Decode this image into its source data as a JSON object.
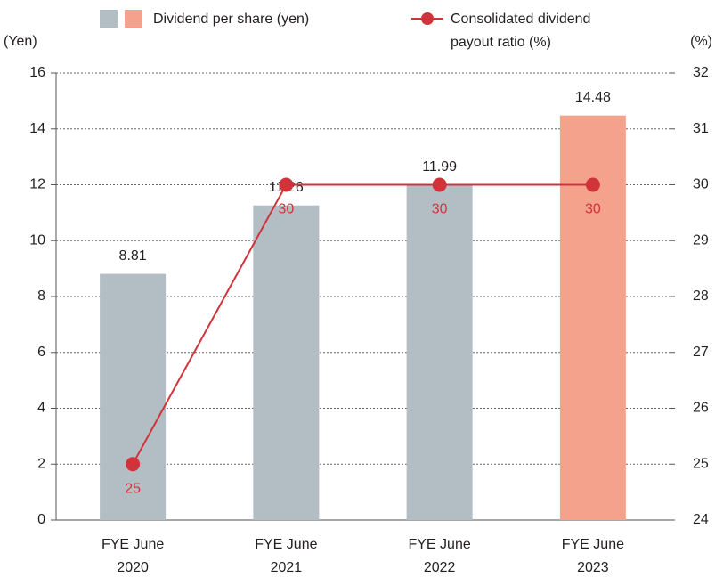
{
  "chart_data": {
    "type": "bar-line",
    "categories": [
      "FYE June 2020",
      "FYE June 2021",
      "FYE June 2022",
      "FYE June 2023"
    ],
    "series": [
      {
        "name": "Dividend per share (yen)",
        "type": "bar",
        "colors": [
          "#b2bdc4",
          "#b2bdc4",
          "#b2bdc4",
          "#f5a28c"
        ],
        "values": [
          8.81,
          11.26,
          11.99,
          14.48
        ]
      },
      {
        "name": "Consolidated dividend payout ratio (%)",
        "type": "line",
        "axis": "y2",
        "color": "#d0343a",
        "values": [
          25,
          30,
          30,
          30
        ]
      }
    ],
    "ylabel": "(Yen)",
    "y2label": "(%)",
    "ylim": [
      0,
      16
    ],
    "yticks": [
      0,
      2,
      4,
      6,
      8,
      10,
      12,
      14,
      16
    ],
    "y2lim": [
      24,
      32
    ],
    "y2ticks": [
      24,
      25,
      26,
      27,
      28,
      29,
      30,
      31,
      32
    ],
    "grid": true
  }
}
